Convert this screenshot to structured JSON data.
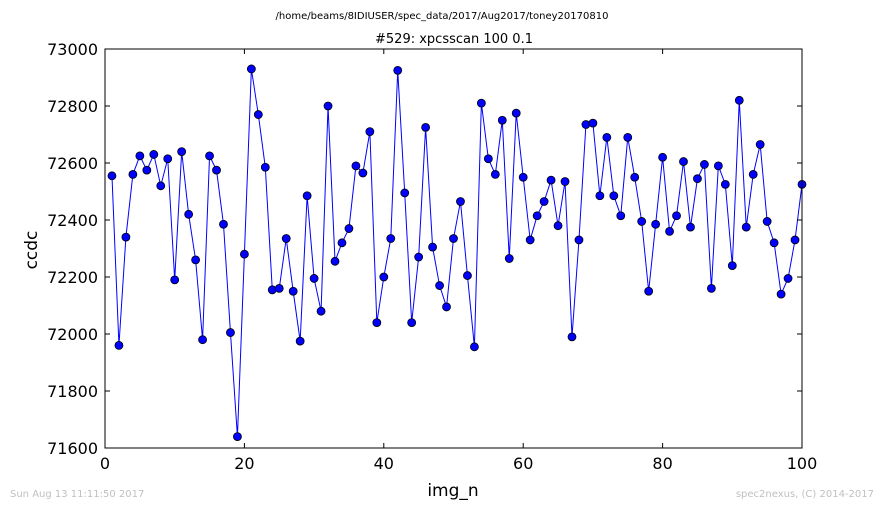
{
  "chart_data": {
    "type": "line",
    "suptitle": "/home/beams/8IDIUSER/spec_data/2017/Aug2017/toney20170810",
    "title": "#529: xpcsscan 100 0.1",
    "xlabel": "img_n",
    "ylabel": "ccdc",
    "xlim": [
      0,
      100
    ],
    "ylim": [
      71600,
      73000
    ],
    "xticks": [
      0,
      20,
      40,
      60,
      80,
      100
    ],
    "yticks": [
      71600,
      71800,
      72000,
      72200,
      72400,
      72600,
      72800,
      73000
    ],
    "grid": false,
    "marker": "circle",
    "color": "#0000ff",
    "x": [
      1,
      2,
      3,
      4,
      5,
      6,
      7,
      8,
      9,
      10,
      11,
      12,
      13,
      14,
      15,
      16,
      17,
      18,
      19,
      20,
      21,
      22,
      23,
      24,
      25,
      26,
      27,
      28,
      29,
      30,
      31,
      32,
      33,
      34,
      35,
      36,
      37,
      38,
      39,
      40,
      41,
      42,
      43,
      44,
      45,
      46,
      47,
      48,
      49,
      50,
      51,
      52,
      53,
      54,
      55,
      56,
      57,
      58,
      59,
      60,
      61,
      62,
      63,
      64,
      65,
      66,
      67,
      68,
      69,
      70,
      71,
      72,
      73,
      74,
      75,
      76,
      77,
      78,
      79,
      80,
      81,
      82,
      83,
      84,
      85,
      86,
      87,
      88,
      89,
      90,
      91,
      92,
      93,
      94,
      95,
      96,
      97,
      98,
      99,
      100
    ],
    "y": [
      72555,
      71960,
      72340,
      72560,
      72625,
      72575,
      72630,
      72520,
      72615,
      72190,
      72640,
      72420,
      72260,
      71980,
      72625,
      72575,
      72385,
      72005,
      71640,
      72280,
      72930,
      72770,
      72585,
      72155,
      72160,
      72335,
      72150,
      71975,
      72485,
      72195,
      72080,
      72800,
      72255,
      72320,
      72370,
      72590,
      72565,
      72710,
      72040,
      72200,
      72335,
      72925,
      72495,
      72040,
      72270,
      72725,
      72305,
      72170,
      72095,
      72335,
      72465,
      72205,
      71955,
      72810,
      72615,
      72560,
      72750,
      72265,
      72775,
      72550,
      72330,
      72415,
      72465,
      72540,
      72380,
      72535,
      71990,
      72330,
      72735,
      72740,
      72485,
      72690,
      72485,
      72415,
      72690,
      72550,
      72395,
      72150,
      72385,
      72620,
      72360,
      72415,
      72605,
      72375,
      72545,
      72595,
      72160,
      72590,
      72525,
      72240,
      72820,
      72375,
      72560,
      72665,
      72395,
      72320,
      72140,
      72195,
      72330,
      72525
    ]
  },
  "footer": {
    "timestamp": "Sun Aug 13 11:11:50 2017",
    "credit": "spec2nexus, (C) 2014-2017"
  }
}
